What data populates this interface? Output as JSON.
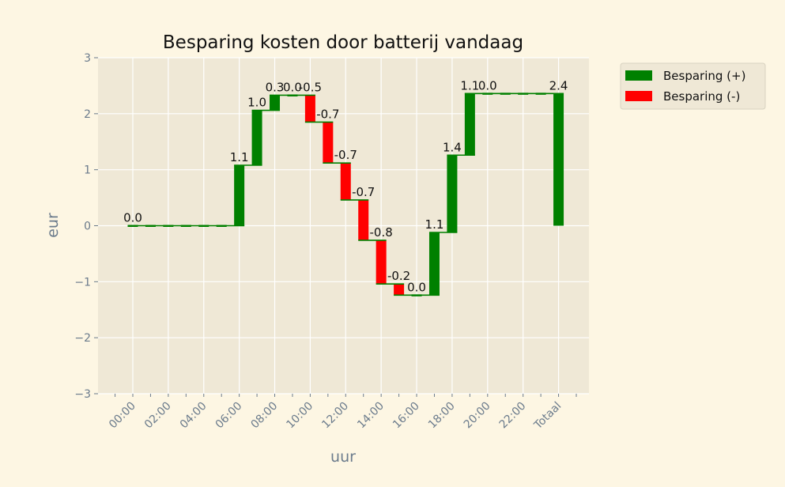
{
  "chart_data": {
    "type": "bar",
    "subtype": "waterfall",
    "title": "Besparing kosten door batterij vandaag",
    "xlabel": "uur",
    "ylabel": "eur",
    "ylim": [
      -3,
      3
    ],
    "yticks": [
      -3,
      -2,
      -1,
      0,
      1,
      2,
      3
    ],
    "xtick_labels": [
      "00:00",
      "02:00",
      "04:00",
      "06:00",
      "08:00",
      "10:00",
      "12:00",
      "14:00",
      "16:00",
      "18:00",
      "20:00",
      "22:00",
      "Totaal"
    ],
    "grid": true,
    "legend_position": "outside-top-right",
    "categories": [
      "00:00",
      "01:00",
      "02:00",
      "03:00",
      "04:00",
      "05:00",
      "06:00",
      "07:00",
      "08:00",
      "09:00",
      "10:00",
      "11:00",
      "12:00",
      "13:00",
      "14:00",
      "15:00",
      "16:00",
      "17:00",
      "18:00",
      "19:00",
      "20:00",
      "21:00",
      "22:00",
      "23:00",
      "Totaal"
    ],
    "values": [
      0.0,
      0.0,
      0.0,
      0.0,
      0.0,
      0.0,
      1.08,
      0.98,
      0.27,
      0.0,
      -0.48,
      -0.73,
      -0.66,
      -0.72,
      -0.78,
      -0.2,
      0.0,
      1.12,
      1.38,
      1.1,
      0.0,
      0.0,
      0.0,
      0.0,
      2.36
    ],
    "data_labels": [
      "0.0",
      "",
      "",
      "",
      "",
      "",
      "1.1",
      "1.0",
      "0.3",
      "0.0",
      "-0.5",
      "-0.7",
      "-0.7",
      "-0.7",
      "-0.8",
      "-0.2",
      "0.0",
      "1.1",
      "1.4",
      "1.1",
      "0.0",
      "",
      "",
      "",
      "2.4"
    ],
    "series": [
      {
        "name": "Besparing (+)",
        "color": "#008000"
      },
      {
        "name": "Besparing (-)",
        "color": "#ff0000"
      }
    ],
    "colors": {
      "positive": "#008000",
      "negative": "#ff0000",
      "figure_bg": "#fdf6e3",
      "axes_bg": "#efe8d6",
      "grid": "#ffffff",
      "tick_text": "#6b7b8c",
      "title_text": "#111111"
    }
  }
}
